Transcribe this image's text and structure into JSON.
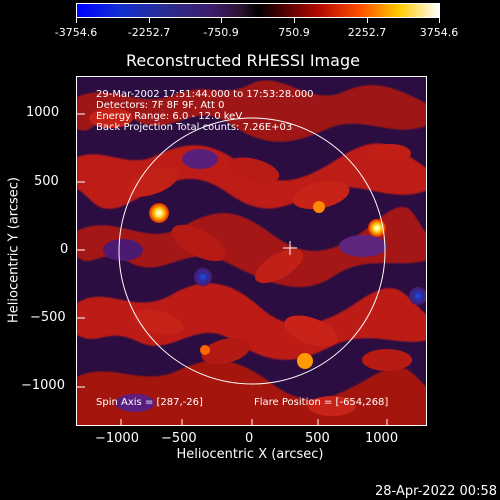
{
  "colorbar": {
    "ticks": [
      "-3754.6",
      "-2252.7",
      "-750.9",
      "750.9",
      "2252.7",
      "3754.6"
    ]
  },
  "plot": {
    "title": "Reconstructed RHESSI Image",
    "x_label": "Heliocentric X (arcsec)",
    "y_label": "Heliocentric Y (arcsec)",
    "x_ticks": [
      "−1000",
      "−500",
      "0",
      "500",
      "1000"
    ],
    "y_ticks": [
      "1000",
      "500",
      "0",
      "−500",
      "−1000"
    ],
    "info": [
      "29-Mar-2002 17:51:44.000 to 17:53:28.000",
      "Detectors: 7F 8F 9F, Att 0",
      "Energy Range: 6.0 - 12.0 keV",
      "Back Projection    Total counts: 7.26E+03"
    ],
    "spin_axis": "Spin Axis = [287,-26]",
    "flare_position": "Flare Position = [-654,268]",
    "solar_limb": "white-circle",
    "spin_axis_marker": "plus-marker"
  },
  "footer": {
    "timestamp": "28-Apr-2022 00:58"
  },
  "colors": {
    "background": "#000000",
    "foreground": "#ffffff",
    "map_negative": "#4b1a74",
    "map_positive": "#b51212",
    "map_hot": "#ffd000"
  }
}
